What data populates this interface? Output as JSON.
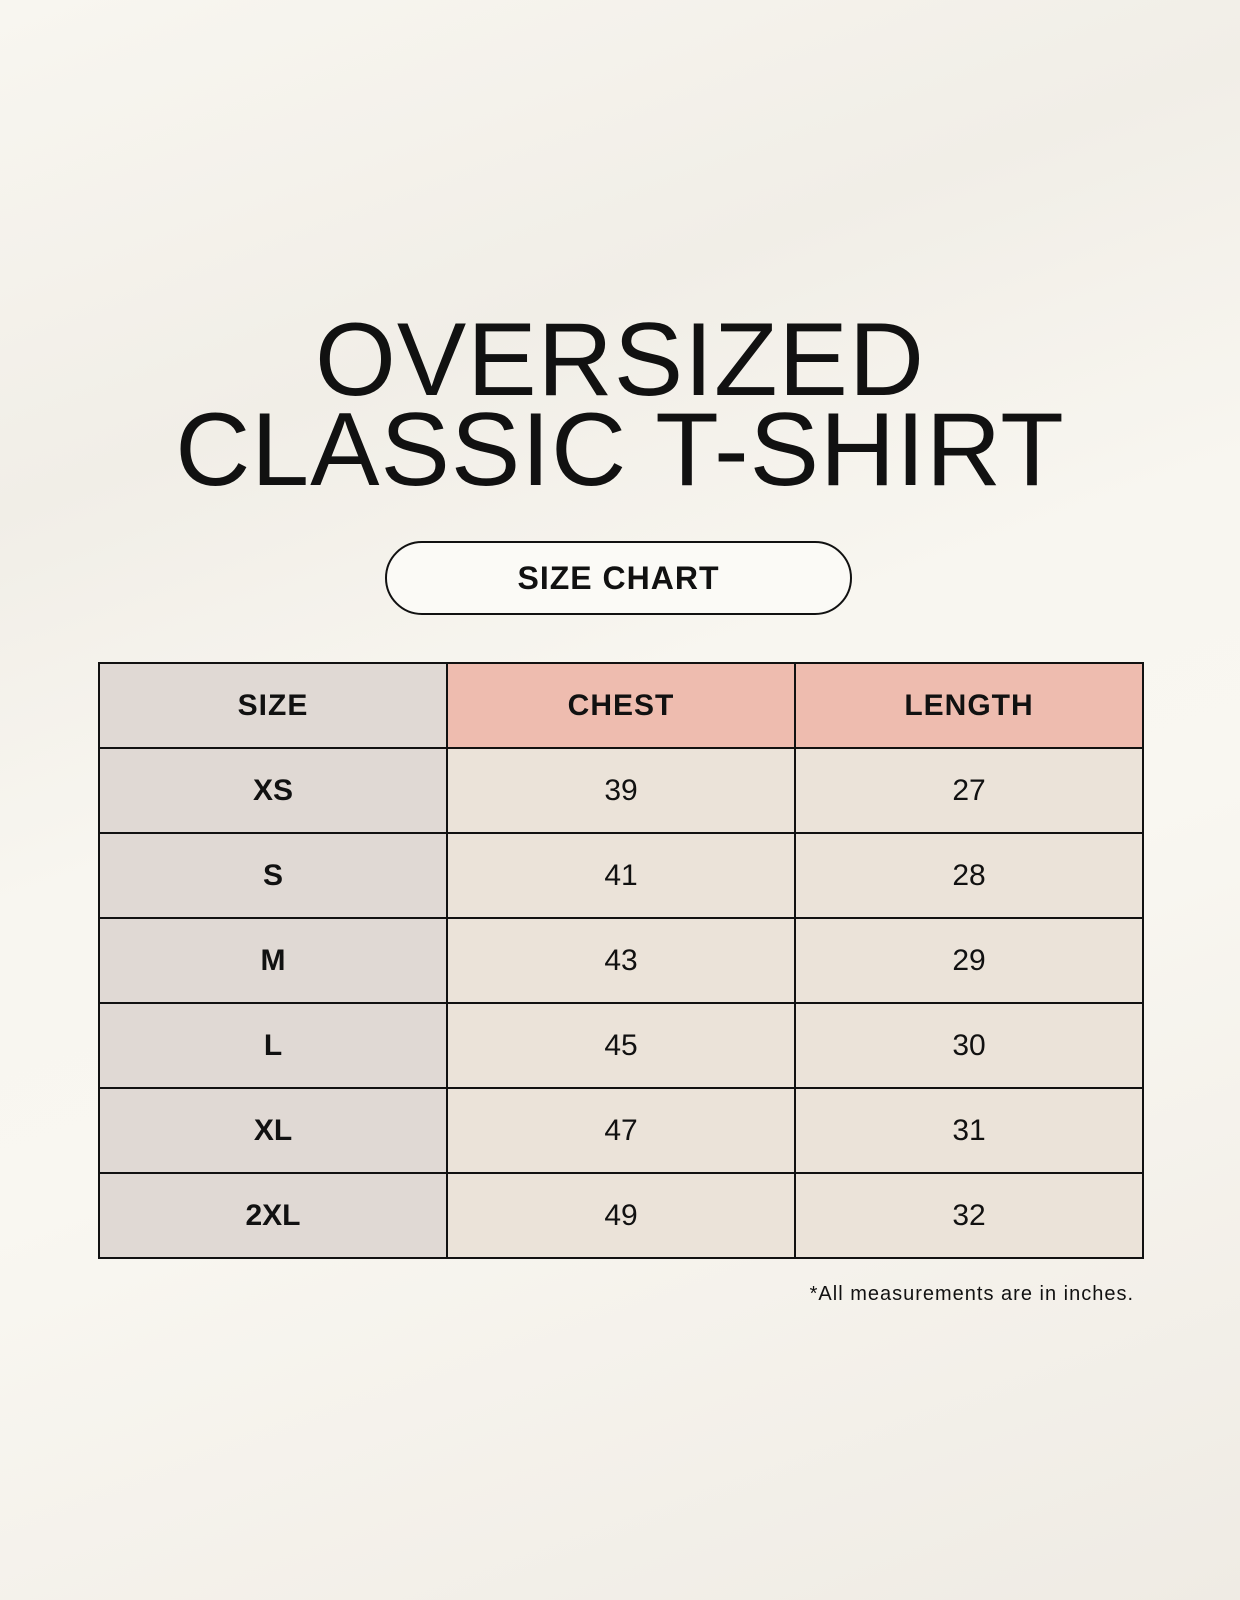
{
  "title": {
    "line1": "OVERSIZED",
    "line2": "CLASSIC T-SHIRT"
  },
  "badge": "SIZE CHART",
  "colors": {
    "size_column": "#e0d9d4",
    "header_accent": "#eebcaf",
    "cell": "#ebe3d9"
  },
  "table": {
    "headers": [
      "SIZE",
      "CHEST",
      "LENGTH"
    ],
    "rows": [
      [
        "XS",
        "39",
        "27"
      ],
      [
        "S",
        "41",
        "28"
      ],
      [
        "M",
        "43",
        "29"
      ],
      [
        "L",
        "45",
        "30"
      ],
      [
        "XL",
        "47",
        "31"
      ],
      [
        "2XL",
        "49",
        "32"
      ]
    ]
  },
  "footnote": "*All measurements are in inches."
}
